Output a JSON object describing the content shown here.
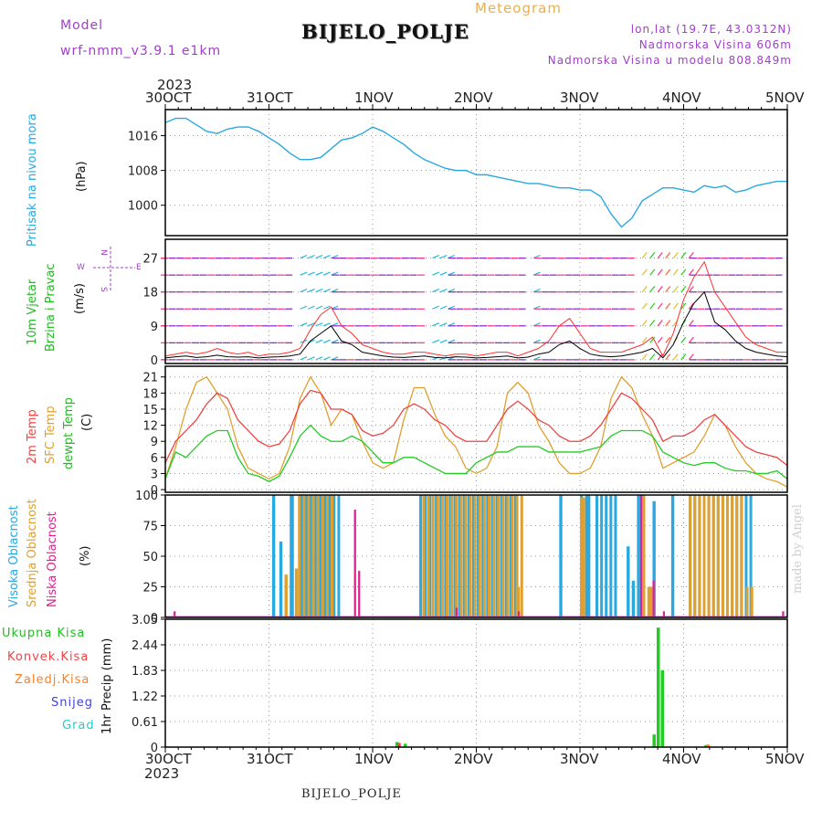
{
  "header": {
    "model_label": "Model",
    "model_name": "wrf-nmm_v3.9.1 e1km",
    "title": "BIJELO_POLJE",
    "subtitle": "Meteogram",
    "location": "lon,lat (19.7E, 43.0312N)",
    "altitude": "Nadmorska Visina 606m",
    "model_altitude": "Nadmorska Visina u modelu 808.849m",
    "watermark": "made by Angel"
  },
  "footer": {
    "station": "BIJELO_POLJE"
  },
  "time_axis": {
    "year": "2023",
    "labels": [
      "30OCT",
      "31OCT",
      "1NOV",
      "2NOV",
      "3NOV",
      "4NOV",
      "5NOV"
    ]
  },
  "colors": {
    "pressure": "#2aa8e0",
    "wind_speed": "#000000",
    "gust": "#ff3030",
    "temp2m": "#ee4444",
    "sfc_temp": "#e0a030",
    "dewpoint": "#22cc22",
    "cloud_high": "#2aa8e0",
    "cloud_mid": "#e0a030",
    "cloud_low": "#e02090",
    "precip_total": "#22cc22",
    "precip_conv": "#ee4444",
    "precip_frozen": "#ff8020",
    "snow": "#4040e0",
    "hail": "#22cccc",
    "purple": "#a040c8"
  },
  "chart_data": [
    {
      "type": "line",
      "title": "",
      "ylabel": "Pritisak na nivou mora",
      "unit": "(hPa)",
      "ylim": [
        993,
        1022
      ],
      "yticks": [
        1000,
        1008,
        1016
      ],
      "x": [
        0,
        0.1,
        0.2,
        0.3,
        0.4,
        0.5,
        0.6,
        0.7,
        0.8,
        0.9,
        1,
        1.1,
        1.2,
        1.3,
        1.4,
        1.5,
        1.6,
        1.7,
        1.8,
        1.9,
        2,
        2.1,
        2.2,
        2.3,
        2.4,
        2.5,
        2.6,
        2.7,
        2.8,
        2.9,
        3,
        3.1,
        3.2,
        3.3,
        3.4,
        3.5,
        3.6,
        3.7,
        3.8,
        3.9,
        4,
        4.1,
        4.2,
        4.3,
        4.4,
        4.5,
        4.6,
        4.7,
        4.8,
        4.9,
        5,
        5.1,
        5.2,
        5.3,
        5.4,
        5.5,
        5.6,
        5.7,
        5.8,
        5.9,
        6
      ],
      "series": [
        {
          "values": [
            1019,
            1020,
            1020,
            1018.5,
            1017,
            1016.5,
            1017.5,
            1018,
            1018,
            1017,
            1015.5,
            1014,
            1012,
            1010.5,
            1010.5,
            1011,
            1013,
            1015,
            1015.5,
            1016.5,
            1018,
            1017,
            1015.5,
            1014,
            1012,
            1010.5,
            1009.5,
            1008.5,
            1008,
            1008,
            1007,
            1007,
            1006.5,
            1006,
            1005.5,
            1005,
            1005,
            1004.5,
            1004,
            1004,
            1003.5,
            1003.5,
            1002,
            998,
            995,
            997,
            1001,
            1002.5,
            1004,
            1004,
            1003.5,
            1003,
            1004.5,
            1004,
            1004.5,
            1003,
            1003.5,
            1004.5,
            1005,
            1005.5,
            1005.5
          ]
        }
      ]
    },
    {
      "type": "line",
      "title": "",
      "ylabel": "10m Vjetar Brzina i Pravac",
      "unit": "(m/s)",
      "compass": [
        "N",
        "E",
        "W",
        "S"
      ],
      "ylim": [
        -1,
        32
      ],
      "yticks": [
        0,
        9,
        18,
        27
      ],
      "x": [
        0,
        0.1,
        0.2,
        0.3,
        0.4,
        0.5,
        0.6,
        0.7,
        0.8,
        0.9,
        1,
        1.1,
        1.2,
        1.3,
        1.4,
        1.5,
        1.6,
        1.7,
        1.8,
        1.9,
        2,
        2.1,
        2.2,
        2.3,
        2.4,
        2.5,
        2.6,
        2.7,
        2.8,
        2.9,
        3,
        3.1,
        3.2,
        3.3,
        3.4,
        3.5,
        3.6,
        3.7,
        3.8,
        3.9,
        4,
        4.1,
        4.2,
        4.3,
        4.4,
        4.5,
        4.6,
        4.7,
        4.8,
        4.9,
        5,
        5.1,
        5.2,
        5.3,
        5.4,
        5.5,
        5.6,
        5.7,
        5.8,
        5.9,
        6
      ],
      "series": [
        {
          "name": "speed",
          "values": [
            0.5,
            0.8,
            1,
            0.6,
            0.8,
            1.2,
            0.8,
            0.7,
            0.8,
            0.5,
            0.7,
            0.8,
            1,
            1.5,
            5,
            7,
            9,
            5,
            4,
            2,
            1.5,
            1,
            0.7,
            0.6,
            0.8,
            1,
            0.6,
            0.5,
            0.8,
            0.7,
            0.5,
            0.6,
            0.8,
            1,
            0.5,
            0.7,
            1.5,
            2,
            4,
            5,
            3,
            1.5,
            1,
            0.8,
            1,
            1.5,
            2,
            3,
            0.5,
            4,
            10,
            15,
            18,
            10,
            8,
            5,
            3,
            2,
            1.5,
            1,
            0.8
          ]
        },
        {
          "name": "gust",
          "values": [
            1,
            1.5,
            2,
            1.5,
            2,
            3,
            2,
            1.5,
            2,
            1,
            1.5,
            1.5,
            2,
            3,
            8,
            12,
            14,
            9,
            7,
            4,
            3,
            2,
            1.5,
            1.5,
            2,
            2,
            1.5,
            1,
            1.5,
            1.5,
            1,
            1.5,
            2,
            2,
            1,
            2,
            3,
            5,
            9,
            11,
            7,
            3,
            2,
            2,
            2,
            3,
            4,
            6,
            1,
            7,
            16,
            22,
            26,
            18,
            14,
            10,
            6,
            4,
            3,
            2,
            2
          ]
        }
      ]
    },
    {
      "type": "line",
      "title": "",
      "ylabel": "2m Temp",
      "unit": "(C)",
      "ylim": [
        -0.5,
        23
      ],
      "yticks": [
        0,
        3,
        6,
        9,
        12,
        15,
        18,
        21
      ],
      "series_labels": [
        "2m Temp",
        "SFC Temp",
        "dewpt Temp"
      ],
      "x": [
        0,
        0.1,
        0.2,
        0.3,
        0.4,
        0.5,
        0.6,
        0.7,
        0.8,
        0.9,
        1,
        1.1,
        1.2,
        1.3,
        1.4,
        1.5,
        1.6,
        1.7,
        1.8,
        1.9,
        2,
        2.1,
        2.2,
        2.3,
        2.4,
        2.5,
        2.6,
        2.7,
        2.8,
        2.9,
        3,
        3.1,
        3.2,
        3.3,
        3.4,
        3.5,
        3.6,
        3.7,
        3.8,
        3.9,
        4,
        4.1,
        4.2,
        4.3,
        4.4,
        4.5,
        4.6,
        4.7,
        4.8,
        4.9,
        5,
        5.1,
        5.2,
        5.3,
        5.4,
        5.5,
        5.6,
        5.7,
        5.8,
        5.9,
        6
      ],
      "series": [
        {
          "name": "2m Temp",
          "values": [
            5,
            9,
            11,
            13,
            16,
            18,
            17,
            13,
            11,
            9,
            8,
            8.5,
            11,
            16,
            18.5,
            18,
            15,
            15,
            14,
            11,
            10,
            10.5,
            12,
            15,
            16,
            15,
            13,
            12,
            10,
            9,
            9,
            9,
            12,
            15,
            16.5,
            15,
            13,
            12,
            10,
            9,
            9,
            10,
            12,
            15,
            18,
            17,
            15,
            13,
            9,
            10,
            10,
            11,
            13,
            14,
            12,
            10,
            8,
            7,
            6.5,
            6,
            4.5
          ]
        },
        {
          "name": "SFC Temp",
          "values": [
            2,
            8,
            15,
            20,
            21,
            18,
            15,
            8,
            4,
            3,
            2,
            3,
            8,
            17,
            21,
            18,
            12,
            15,
            14,
            9,
            5,
            4,
            5,
            13,
            19,
            19,
            14,
            10,
            8,
            4,
            3,
            4,
            8,
            18,
            20,
            18,
            12,
            9,
            5,
            3,
            3,
            4,
            8,
            17,
            21,
            19,
            14,
            10,
            4,
            5,
            6,
            7,
            10,
            14,
            12,
            8,
            5,
            3,
            2,
            1.5,
            0.5
          ]
        },
        {
          "name": "dewpt Temp",
          "values": [
            2,
            7,
            6,
            8,
            10,
            11,
            11,
            6,
            3,
            2.5,
            1.5,
            2.5,
            6,
            10,
            12,
            10,
            9,
            9,
            10,
            9,
            7,
            5,
            5,
            6,
            6,
            5,
            4,
            3,
            3,
            3,
            5,
            6,
            7,
            7,
            8,
            8,
            8,
            7,
            7,
            7,
            7,
            7.5,
            8,
            10,
            11,
            11,
            11,
            10,
            7,
            6,
            5,
            4.5,
            5,
            5,
            4,
            3.5,
            3.5,
            3,
            3,
            3.5,
            2
          ]
        }
      ]
    },
    {
      "type": "bar",
      "title": "",
      "ylabel": "Visoka Oblacnost Srednja Oblacnost Niska Oblacnost",
      "unit": "(%)",
      "ylim": [
        0,
        100
      ],
      "yticks": [
        0,
        25,
        50,
        75,
        100
      ],
      "series_labels": [
        "Visoka Oblacnost",
        "Srednja Oblacnost",
        "Niska Oblacnost"
      ],
      "series": [
        {
          "name": "Visoka Oblacnost",
          "blocks": [
            [
              1.03,
              1.06,
              100
            ],
            [
              1.1,
              1.13,
              62
            ],
            [
              1.2,
              1.24,
              100
            ],
            [
              1.3,
              1.7,
              100
            ],
            [
              2.45,
              2.55,
              100
            ],
            [
              2.6,
              3.4,
              100
            ],
            [
              3.8,
              3.83,
              100
            ],
            [
              4.0,
              4.03,
              100
            ],
            [
              4.05,
              4.1,
              100
            ],
            [
              4.15,
              4.35,
              100
            ],
            [
              4.45,
              4.48,
              58
            ],
            [
              4.5,
              4.53,
              30
            ],
            [
              4.55,
              4.58,
              100
            ],
            [
              4.7,
              4.73,
              95
            ],
            [
              4.88,
              4.91,
              100
            ],
            [
              5.05,
              5.65,
              100
            ]
          ]
        },
        {
          "name": "Srednja Oblacnost",
          "blocks": [
            [
              1.15,
              1.18,
              35
            ],
            [
              1.25,
              1.28,
              40
            ],
            [
              1.28,
              1.6,
              100
            ],
            [
              2.48,
              3.45,
              100
            ],
            [
              3.38,
              3.42,
              25
            ],
            [
              4.0,
              4.05,
              98
            ],
            [
              4.6,
              4.63,
              100
            ],
            [
              4.65,
              4.7,
              25
            ],
            [
              5.05,
              5.55,
              100
            ],
            [
              5.6,
              5.65,
              25
            ]
          ]
        },
        {
          "name": "Niska Oblacnost",
          "blocks": [
            [
              0.08,
              0.1,
              5
            ],
            [
              1.82,
              1.84,
              88
            ],
            [
              1.86,
              1.88,
              38
            ],
            [
              2.8,
              2.82,
              8
            ],
            [
              3.4,
              3.42,
              5
            ],
            [
              4.58,
              4.6,
              100
            ],
            [
              4.7,
              4.72,
              30
            ],
            [
              4.8,
              4.82,
              5
            ],
            [
              5.95,
              5.97,
              5
            ]
          ]
        }
      ]
    },
    {
      "type": "bar",
      "title": "",
      "ylabel": "1hr Precip (mm)",
      "unit": "(mm)",
      "ylim": [
        0,
        3.05
      ],
      "yticks": [
        "0",
        "0.61",
        "1.22",
        "1.83",
        "2.44",
        "3.05"
      ],
      "series_labels": [
        "Ukupna Kisa",
        "Konvek.Kisa",
        "Zaledj.Kisa",
        "Snijeg",
        "Grad"
      ],
      "series": [
        {
          "name": "Ukupna Kisa",
          "bars": [
            [
              2.22,
              0.12
            ],
            [
              2.3,
              0.08
            ],
            [
              4.7,
              0.3
            ],
            [
              4.74,
              2.85
            ],
            [
              4.78,
              1.83
            ],
            [
              5.2,
              0.05
            ]
          ]
        },
        {
          "name": "Konvek.Kisa",
          "bars": [
            [
              2.24,
              0.1
            ]
          ]
        },
        {
          "name": "Zaledj.Kisa",
          "bars": [
            [
              5.22,
              0.06
            ]
          ]
        }
      ]
    }
  ]
}
